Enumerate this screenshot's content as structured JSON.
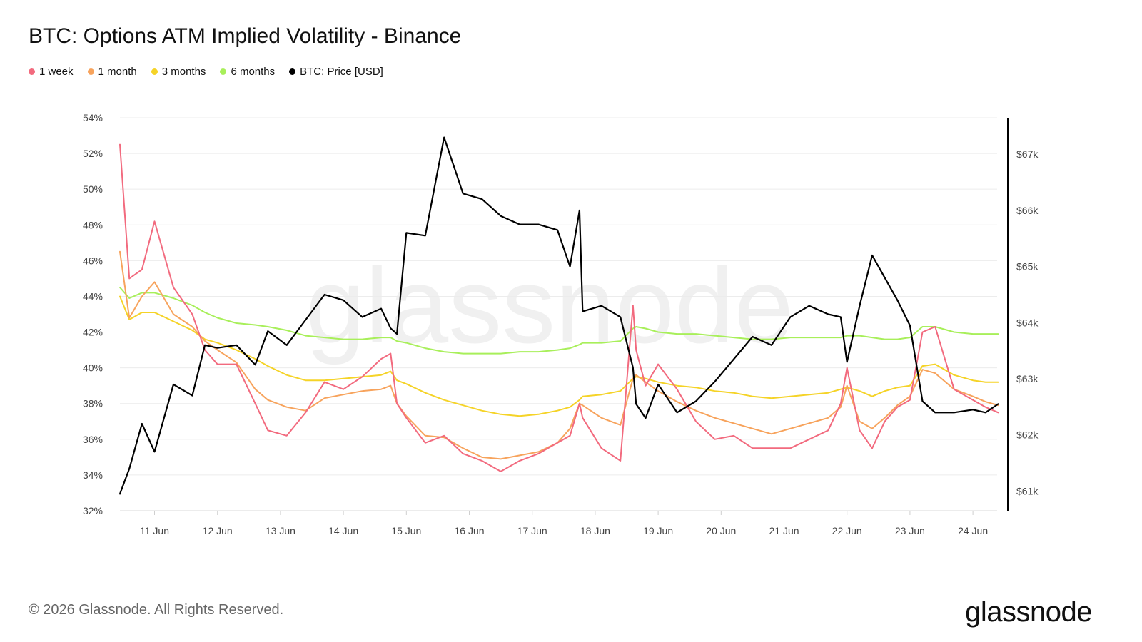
{
  "title": "BTC: Options ATM Implied Volatility - Binance",
  "legend": [
    {
      "label": "1 week",
      "color": "#f26a7e"
    },
    {
      "label": "1 month",
      "color": "#f7a35c"
    },
    {
      "label": "3 months",
      "color": "#f5d327"
    },
    {
      "label": "6 months",
      "color": "#a8ef5a"
    },
    {
      "label": "BTC: Price [USD]",
      "color": "#000000"
    }
  ],
  "footer": "© 2026 Glassnode. All Rights Reserved.",
  "logo": "glassnode",
  "watermark": "glassnode",
  "chart_data": {
    "type": "line",
    "x_ticks": [
      "11 Jun",
      "12 Jun",
      "13 Jun",
      "14 Jun",
      "15 Jun",
      "16 Jun",
      "17 Jun",
      "18 Jun",
      "19 Jun",
      "20 Jun",
      "21 Jun",
      "22 Jun",
      "23 Jun",
      "24 Jun"
    ],
    "y_left": {
      "ticks": [
        "32%",
        "34%",
        "36%",
        "38%",
        "40%",
        "42%",
        "44%",
        "46%",
        "48%",
        "50%",
        "52%",
        "54%"
      ],
      "range": [
        32,
        54
      ]
    },
    "y_right": {
      "ticks": [
        "$61k",
        "$62k",
        "$63k",
        "$64k",
        "$65k",
        "$66k",
        "$67k"
      ],
      "range": [
        60.65,
        67.65
      ]
    },
    "grid": true,
    "x": [
      10.45,
      10.6,
      10.8,
      11.0,
      11.3,
      11.6,
      11.8,
      12.0,
      12.3,
      12.6,
      12.8,
      13.1,
      13.4,
      13.7,
      14.0,
      14.3,
      14.6,
      14.75,
      14.85,
      15.0,
      15.3,
      15.6,
      15.9,
      16.2,
      16.5,
      16.8,
      17.1,
      17.4,
      17.6,
      17.75,
      17.8,
      18.1,
      18.4,
      18.6,
      18.65,
      18.8,
      19.0,
      19.3,
      19.6,
      19.9,
      20.2,
      20.5,
      20.8,
      21.1,
      21.4,
      21.7,
      21.9,
      22.0,
      22.2,
      22.4,
      22.6,
      22.8,
      23.0,
      23.2,
      23.4,
      23.7,
      24.0,
      24.2,
      24.4
    ],
    "series": [
      {
        "name": "1 week",
        "axis": "left",
        "values": [
          52.5,
          45,
          45.5,
          48.2,
          44.5,
          43,
          41,
          40.2,
          40.2,
          38,
          36.5,
          36.2,
          37.5,
          39.2,
          38.8,
          39.5,
          40.5,
          40.8,
          38,
          37.2,
          35.8,
          36.2,
          35.2,
          34.8,
          34.2,
          34.8,
          35.2,
          35.8,
          36.2,
          38,
          37.2,
          35.5,
          34.8,
          43.5,
          41,
          39,
          40.2,
          38.8,
          37,
          36,
          36.2,
          35.5,
          35.5,
          35.5,
          36,
          36.5,
          38,
          40,
          36.5,
          35.5,
          37,
          37.8,
          38.2,
          42,
          42.3,
          38.8,
          38.2,
          37.8,
          37.5
        ]
      },
      {
        "name": "1 month",
        "axis": "left",
        "values": [
          46.5,
          42.8,
          44,
          44.8,
          43,
          42.3,
          41.5,
          41,
          40.3,
          38.8,
          38.2,
          37.8,
          37.6,
          38.3,
          38.5,
          38.7,
          38.8,
          39,
          38,
          37.3,
          36.2,
          36.1,
          35.5,
          35,
          34.9,
          35.1,
          35.3,
          35.8,
          36.6,
          38,
          37.9,
          37.2,
          36.8,
          39.4,
          39.6,
          39.2,
          38.7,
          38.1,
          37.6,
          37.2,
          36.9,
          36.6,
          36.3,
          36.6,
          36.9,
          37.2,
          37.8,
          39,
          37,
          36.6,
          37.2,
          37.9,
          38.4,
          39.9,
          39.7,
          38.8,
          38.4,
          38.1,
          37.9
        ]
      },
      {
        "name": "3 months",
        "axis": "left",
        "values": [
          44,
          42.7,
          43.1,
          43.1,
          42.6,
          42.1,
          41.6,
          41.4,
          41,
          40.5,
          40.1,
          39.6,
          39.3,
          39.3,
          39.4,
          39.5,
          39.6,
          39.8,
          39.3,
          39.1,
          38.6,
          38.2,
          37.9,
          37.6,
          37.4,
          37.3,
          37.4,
          37.6,
          37.8,
          38.2,
          38.4,
          38.5,
          38.7,
          39.4,
          39.5,
          39.4,
          39.2,
          39,
          38.9,
          38.7,
          38.6,
          38.4,
          38.3,
          38.4,
          38.5,
          38.6,
          38.8,
          38.9,
          38.7,
          38.4,
          38.7,
          38.9,
          39,
          40.1,
          40.2,
          39.6,
          39.3,
          39.2,
          39.2
        ]
      },
      {
        "name": "6 months",
        "axis": "left",
        "values": [
          44.5,
          43.9,
          44.2,
          44.2,
          43.9,
          43.5,
          43.1,
          42.8,
          42.5,
          42.4,
          42.3,
          42.1,
          41.8,
          41.7,
          41.6,
          41.6,
          41.7,
          41.7,
          41.5,
          41.4,
          41.1,
          40.9,
          40.8,
          40.8,
          40.8,
          40.9,
          40.9,
          41,
          41.1,
          41.3,
          41.4,
          41.4,
          41.5,
          42.2,
          42.3,
          42.2,
          42,
          41.9,
          41.9,
          41.8,
          41.7,
          41.6,
          41.6,
          41.7,
          41.7,
          41.7,
          41.7,
          41.8,
          41.8,
          41.7,
          41.6,
          41.6,
          41.7,
          42.3,
          42.3,
          42,
          41.9,
          41.9,
          41.9
        ]
      },
      {
        "name": "BTC: Price [USD]",
        "axis": "right",
        "values": [
          60.95,
          61.4,
          62.2,
          61.7,
          62.9,
          62.7,
          63.6,
          63.55,
          63.6,
          63.25,
          63.85,
          63.6,
          64.05,
          64.5,
          64.4,
          64.1,
          64.25,
          63.9,
          63.8,
          65.6,
          65.55,
          67.3,
          66.3,
          66.2,
          65.9,
          65.75,
          65.75,
          65.65,
          65.0,
          66.0,
          64.2,
          64.3,
          64.1,
          63.2,
          62.55,
          62.3,
          62.9,
          62.4,
          62.6,
          62.95,
          63.35,
          63.75,
          63.6,
          64.1,
          64.3,
          64.15,
          64.1,
          63.3,
          64.3,
          65.2,
          64.8,
          64.4,
          63.95,
          62.6,
          62.4,
          62.4,
          62.45,
          62.4,
          62.55
        ]
      }
    ]
  }
}
